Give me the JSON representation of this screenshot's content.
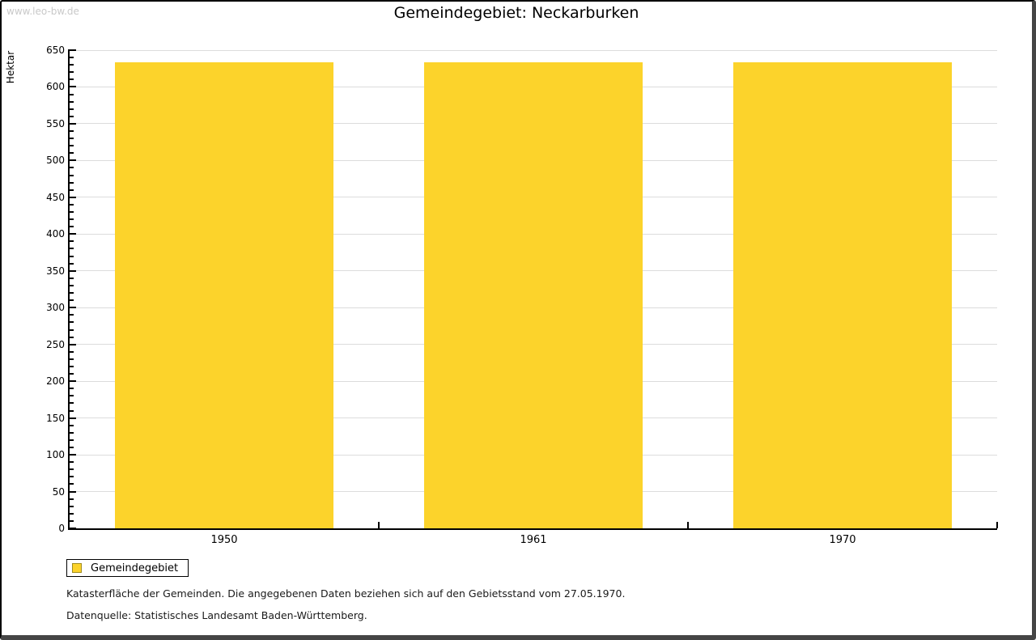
{
  "watermark": "www.leo-bw.de",
  "title": "Gemeindegebiet: Neckarburken",
  "legend": {
    "label": "Gemeindegebiet"
  },
  "footnotes": {
    "line1": "Katasterfläche der Gemeinden. Die angegebenen Daten beziehen sich auf den Gebietsstand vom 27.05.1970.",
    "line2": "Datenquelle: Statistisches Landesamt Baden-Württemberg."
  },
  "chart_data": {
    "type": "bar",
    "title": "Gemeindegebiet: Neckarburken",
    "categories": [
      "1950",
      "1961",
      "1970"
    ],
    "series": [
      {
        "name": "Gemeindegebiet",
        "values": [
          633,
          633,
          633
        ]
      }
    ],
    "xlabel": "",
    "ylabel": "Hektar",
    "ylim": [
      0,
      650
    ],
    "ytick_major": 50,
    "ytick_minor": 10,
    "grid": "horizontal-major",
    "legend_position": "bottom-left",
    "colors": {
      "bar_fill": "#fcd32b",
      "swatch_border": "#a08c1f",
      "gridline": "#dcdcdc",
      "axis": "#000000",
      "watermark": "#c9c9c9"
    }
  }
}
